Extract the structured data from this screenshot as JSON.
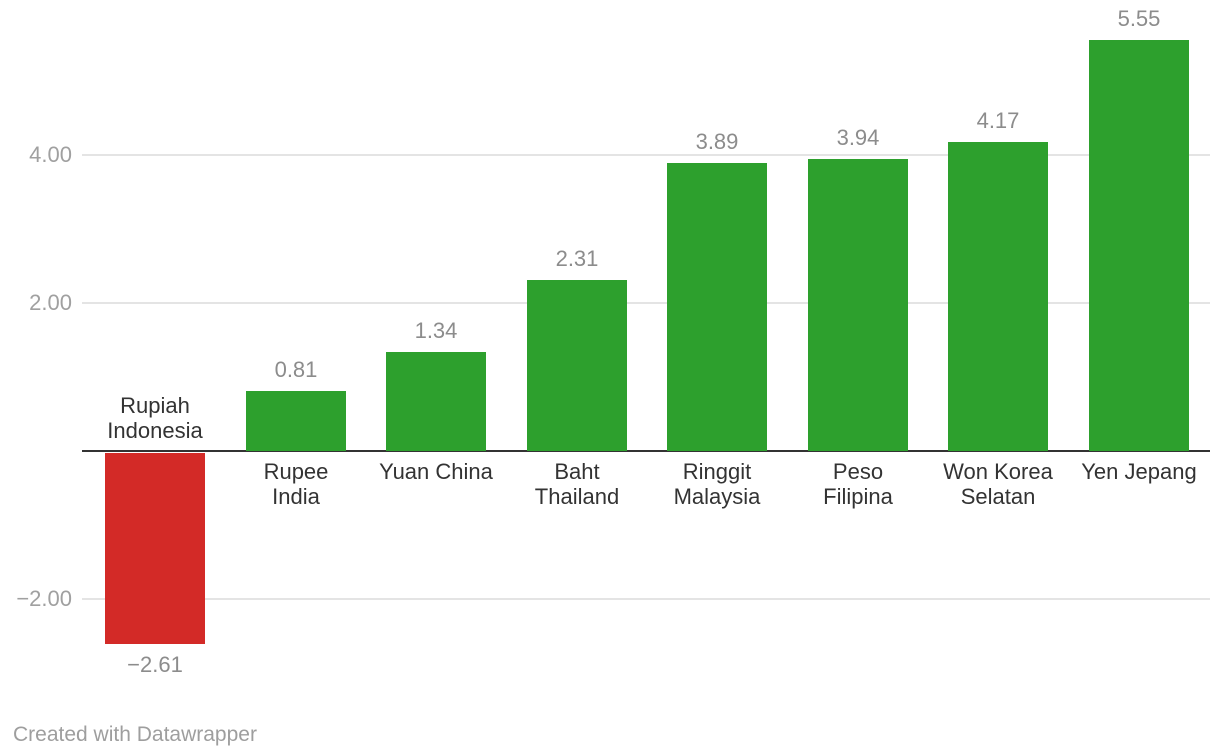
{
  "footer": {
    "credit": "Created with Datawrapper"
  },
  "chart_data": {
    "type": "bar",
    "title": "",
    "xlabel": "",
    "ylabel": "",
    "categories": [
      "Rupiah Indonesia",
      "Rupee India",
      "Yuan China",
      "Baht Thailand",
      "Ringgit Malaysia",
      "Peso Filipina",
      "Won Korea Selatan",
      "Yen Jepang"
    ],
    "values": [
      -2.61,
      0.81,
      1.34,
      2.31,
      3.89,
      3.94,
      4.17,
      5.55
    ],
    "bars": [
      {
        "category": "Rupiah Indonesia",
        "label_lines": [
          "Rupiah",
          "Indonesia"
        ],
        "value": -2.61,
        "value_label": "−2.61"
      },
      {
        "category": "Rupee India",
        "label_lines": [
          "Rupee",
          "India"
        ],
        "value": 0.81,
        "value_label": "0.81"
      },
      {
        "category": "Yuan China",
        "label_lines": [
          "Yuan China"
        ],
        "value": 1.34,
        "value_label": "1.34"
      },
      {
        "category": "Baht Thailand",
        "label_lines": [
          "Baht",
          "Thailand"
        ],
        "value": 2.31,
        "value_label": "2.31"
      },
      {
        "category": "Ringgit Malaysia",
        "label_lines": [
          "Ringgit",
          "Malaysia"
        ],
        "value": 3.89,
        "value_label": "3.89"
      },
      {
        "category": "Peso Filipina",
        "label_lines": [
          "Peso",
          "Filipina"
        ],
        "value": 3.94,
        "value_label": "3.94"
      },
      {
        "category": "Won Korea Selatan",
        "label_lines": [
          "Won Korea",
          "Selatan"
        ],
        "value": 4.17,
        "value_label": "4.17"
      },
      {
        "category": "Yen Jepang",
        "label_lines": [
          "Yen Jepang"
        ],
        "value": 5.55,
        "value_label": "5.55"
      }
    ],
    "yticks": [
      {
        "value": 4,
        "label": "4.00"
      },
      {
        "value": 2,
        "label": "2.00"
      },
      {
        "value": -2,
        "label": "−2.00"
      }
    ],
    "ylim": [
      -2.61,
      5.55
    ],
    "grid": "horizontal-lines",
    "legend": "none",
    "colors": {
      "positive": "#2da02d",
      "negative": "#d32a27",
      "gridline": "#e4e4e4",
      "zero_line": "#333333",
      "value_label": "#8c8c8c",
      "tick_label": "#a0a0a0",
      "category_label": "#333333",
      "footer_text": "#9e9e9e",
      "background": "#ffffff"
    }
  }
}
